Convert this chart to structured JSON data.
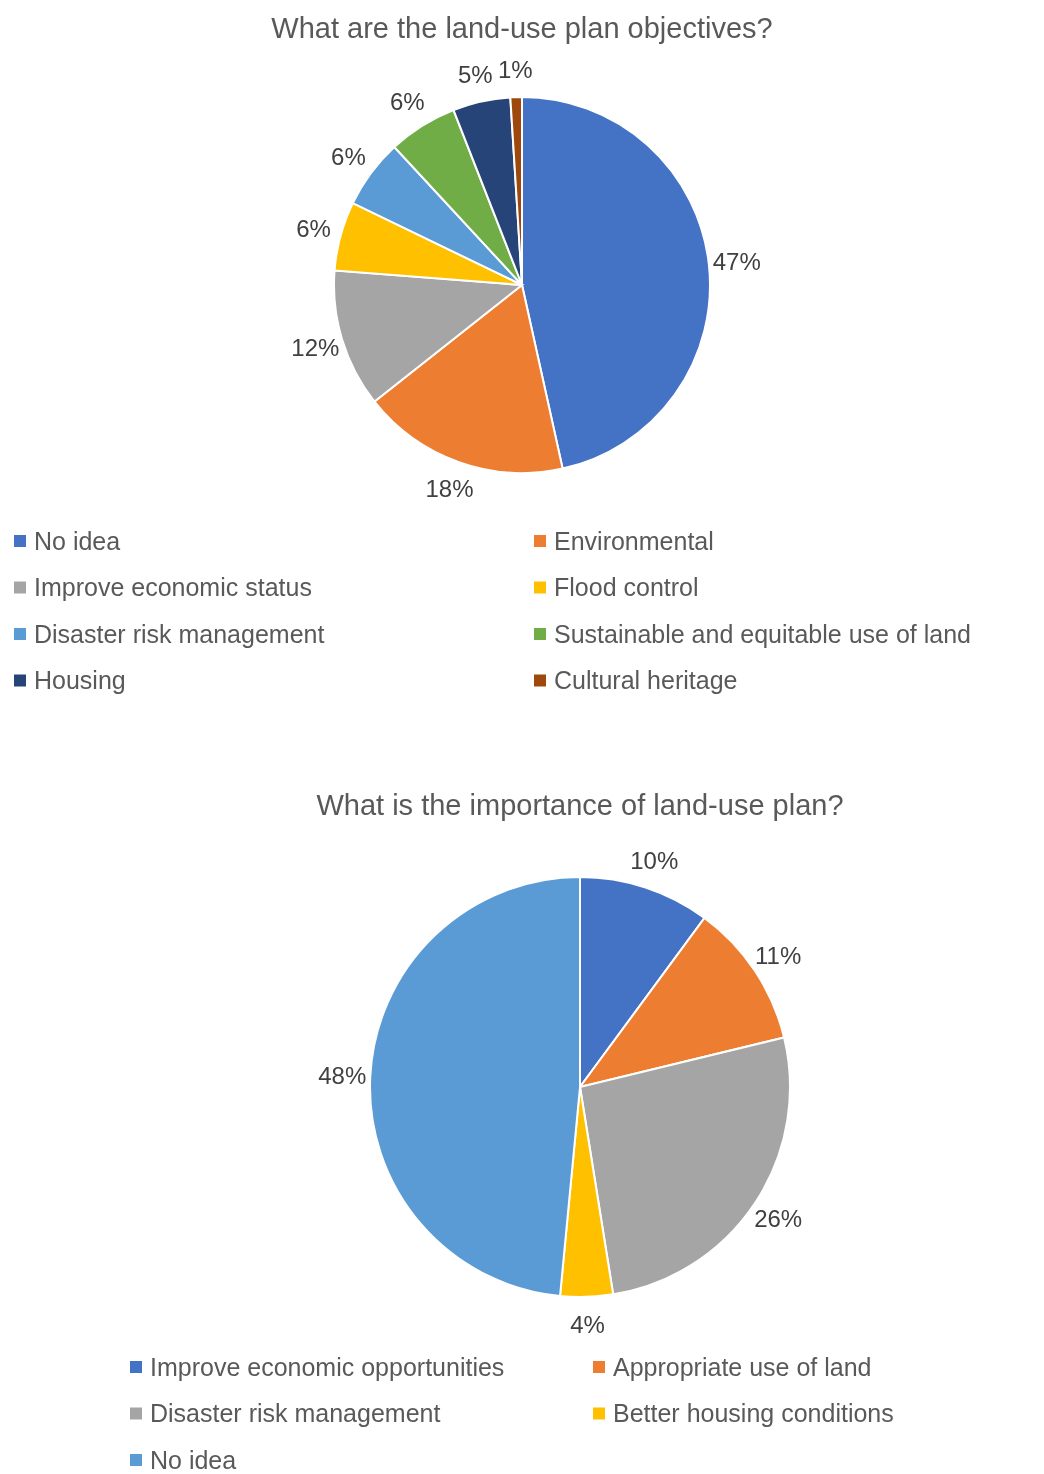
{
  "chart_data": [
    {
      "type": "pie",
      "title": "What are the land-use plan objectives?",
      "categories": [
        "No idea",
        "Environmental",
        "Improve economic status",
        "Flood control",
        "Disaster risk management",
        "Sustainable and equitable use of land",
        "Housing",
        "Cultural heritage"
      ],
      "values": [
        47,
        18,
        12,
        6,
        6,
        6,
        5,
        1
      ],
      "value_labels": [
        "47%",
        "18%",
        "12%",
        "6%",
        "6%",
        "6%",
        "5%",
        "1%"
      ],
      "colors": [
        "#4472c4",
        "#ed7d31",
        "#a5a5a5",
        "#ffc000",
        "#5b9bd5",
        "#70ad47",
        "#264478",
        "#9e480e"
      ],
      "legend": "bottom"
    },
    {
      "type": "pie",
      "title": "What is the importance of land-use plan?",
      "categories": [
        "Improve economic opportunities",
        "Appropriate use of land",
        "Disaster risk management",
        "Better housing conditions",
        "No idea"
      ],
      "values": [
        10,
        11,
        26,
        4,
        48
      ],
      "value_labels": [
        "10%",
        "11%",
        "26%",
        "4%",
        "48%"
      ],
      "colors": [
        "#4472c4",
        "#ed7d31",
        "#a5a5a5",
        "#ffc000",
        "#5b9bd5"
      ],
      "legend": "bottom"
    }
  ]
}
